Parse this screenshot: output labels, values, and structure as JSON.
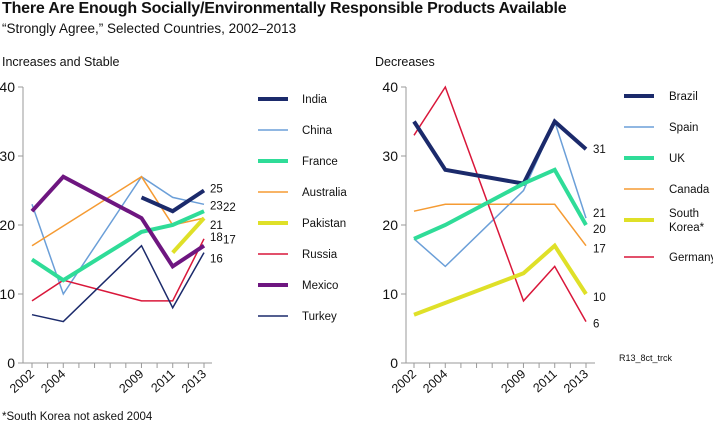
{
  "title": "There Are Enough Socially/Environmentally Responsible Products Available",
  "subtitle": "“Strongly Agree,” Selected Countries, 2002–2013",
  "footnote": "*South Korea not asked 2004",
  "source_code": "R13_8ct_trck",
  "chart_data": [
    {
      "type": "line",
      "title": "Increases and Stable",
      "xlabel": "",
      "ylabel": "",
      "x": [
        2002,
        2003,
        2004,
        2005,
        2006,
        2007,
        2008,
        2009,
        2010,
        2011,
        2012,
        2013
      ],
      "x_tick_labels": [
        "2002",
        "2004",
        "2009",
        "2011",
        "2013"
      ],
      "x_tick_values": [
        2002,
        2004,
        2009,
        2011,
        2013
      ],
      "y_ticks": [
        0,
        10,
        20,
        30,
        40
      ],
      "ylim": [
        0,
        40
      ],
      "grid": false,
      "legend_position": "right",
      "series": [
        {
          "name": "India",
          "color": "#1b2a6b",
          "weight": "thick",
          "points": [
            [
              2009,
              24
            ],
            [
              2011,
              22
            ],
            [
              2013,
              25
            ]
          ],
          "end_label": "25"
        },
        {
          "name": "China",
          "color": "#6b9fd8",
          "weight": "thin",
          "points": [
            [
              2002,
              23
            ],
            [
              2004,
              10
            ],
            [
              2009,
              27
            ],
            [
              2011,
              24
            ],
            [
              2013,
              23
            ]
          ],
          "end_label": "23"
        },
        {
          "name": "France",
          "color": "#2fdc98",
          "weight": "thick",
          "points": [
            [
              2002,
              15
            ],
            [
              2004,
              12
            ],
            [
              2009,
              19
            ],
            [
              2011,
              20
            ],
            [
              2013,
              22
            ]
          ],
          "end_label": "22"
        },
        {
          "name": "Australia",
          "color": "#f59b33",
          "weight": "thin",
          "points": [
            [
              2002,
              17
            ],
            [
              2009,
              27
            ],
            [
              2011,
              20
            ],
            [
              2013,
              21
            ]
          ],
          "end_label": "21"
        },
        {
          "name": "Pakistan",
          "color": "#dfe028",
          "weight": "thick",
          "points": [
            [
              2011,
              16
            ],
            [
              2013,
              21
            ]
          ],
          "end_label": ""
        },
        {
          "name": "Russia",
          "color": "#d9173a",
          "weight": "thin",
          "points": [
            [
              2002,
              9
            ],
            [
              2004,
              12
            ],
            [
              2009,
              9
            ],
            [
              2011,
              9
            ],
            [
              2013,
              18
            ]
          ],
          "end_label": "18"
        },
        {
          "name": "Mexico",
          "color": "#6e1680",
          "weight": "thick",
          "points": [
            [
              2002,
              22
            ],
            [
              2004,
              27
            ],
            [
              2009,
              21
            ],
            [
              2011,
              14
            ],
            [
              2013,
              17
            ]
          ],
          "end_label": "17"
        },
        {
          "name": "Turkey",
          "color": "#1b2a6b",
          "weight": "thin",
          "points": [
            [
              2002,
              7
            ],
            [
              2004,
              6
            ],
            [
              2009,
              17
            ],
            [
              2011,
              8
            ],
            [
              2013,
              16
            ]
          ],
          "end_label": "16"
        }
      ]
    },
    {
      "type": "line",
      "title": "Decreases",
      "xlabel": "",
      "ylabel": "",
      "x": [
        2002,
        2003,
        2004,
        2005,
        2006,
        2007,
        2008,
        2009,
        2010,
        2011,
        2012,
        2013
      ],
      "x_tick_labels": [
        "2002",
        "2004",
        "2009",
        "2011",
        "2013"
      ],
      "x_tick_values": [
        2002,
        2004,
        2009,
        2011,
        2013
      ],
      "y_ticks": [
        0,
        10,
        20,
        30,
        40
      ],
      "ylim": [
        0,
        40
      ],
      "grid": false,
      "legend_position": "right",
      "series": [
        {
          "name": "Brazil",
          "color": "#1b2a6b",
          "weight": "thick",
          "points": [
            [
              2002,
              35
            ],
            [
              2004,
              28
            ],
            [
              2009,
              26
            ],
            [
              2011,
              35
            ],
            [
              2013,
              31
            ]
          ],
          "end_label": "31"
        },
        {
          "name": "Spain",
          "color": "#6b9fd8",
          "weight": "thin",
          "points": [
            [
              2002,
              18
            ],
            [
              2004,
              14
            ],
            [
              2009,
              25
            ],
            [
              2011,
              35
            ],
            [
              2013,
              21
            ]
          ],
          "end_label": "21"
        },
        {
          "name": "UK",
          "color": "#2fdc98",
          "weight": "thick",
          "points": [
            [
              2002,
              18
            ],
            [
              2004,
              20
            ],
            [
              2009,
              26
            ],
            [
              2011,
              28
            ],
            [
              2013,
              20
            ]
          ],
          "end_label": "20"
        },
        {
          "name": "Canada",
          "color": "#f59b33",
          "weight": "thin",
          "points": [
            [
              2002,
              22
            ],
            [
              2004,
              23
            ],
            [
              2009,
              23
            ],
            [
              2011,
              23
            ],
            [
              2013,
              17
            ]
          ],
          "end_label": "17"
        },
        {
          "name": "South Korea*",
          "legend_lines": [
            "South",
            "Korea*"
          ],
          "color": "#dfe028",
          "weight": "thick",
          "points": [
            [
              2002,
              7
            ],
            [
              2009,
              13
            ],
            [
              2011,
              17
            ],
            [
              2013,
              10
            ]
          ],
          "end_label": "10"
        },
        {
          "name": "Germany",
          "color": "#d9173a",
          "weight": "thin",
          "points": [
            [
              2002,
              33
            ],
            [
              2004,
              40
            ],
            [
              2009,
              9
            ],
            [
              2011,
              14
            ],
            [
              2013,
              6
            ]
          ],
          "end_label": "6"
        }
      ]
    }
  ]
}
